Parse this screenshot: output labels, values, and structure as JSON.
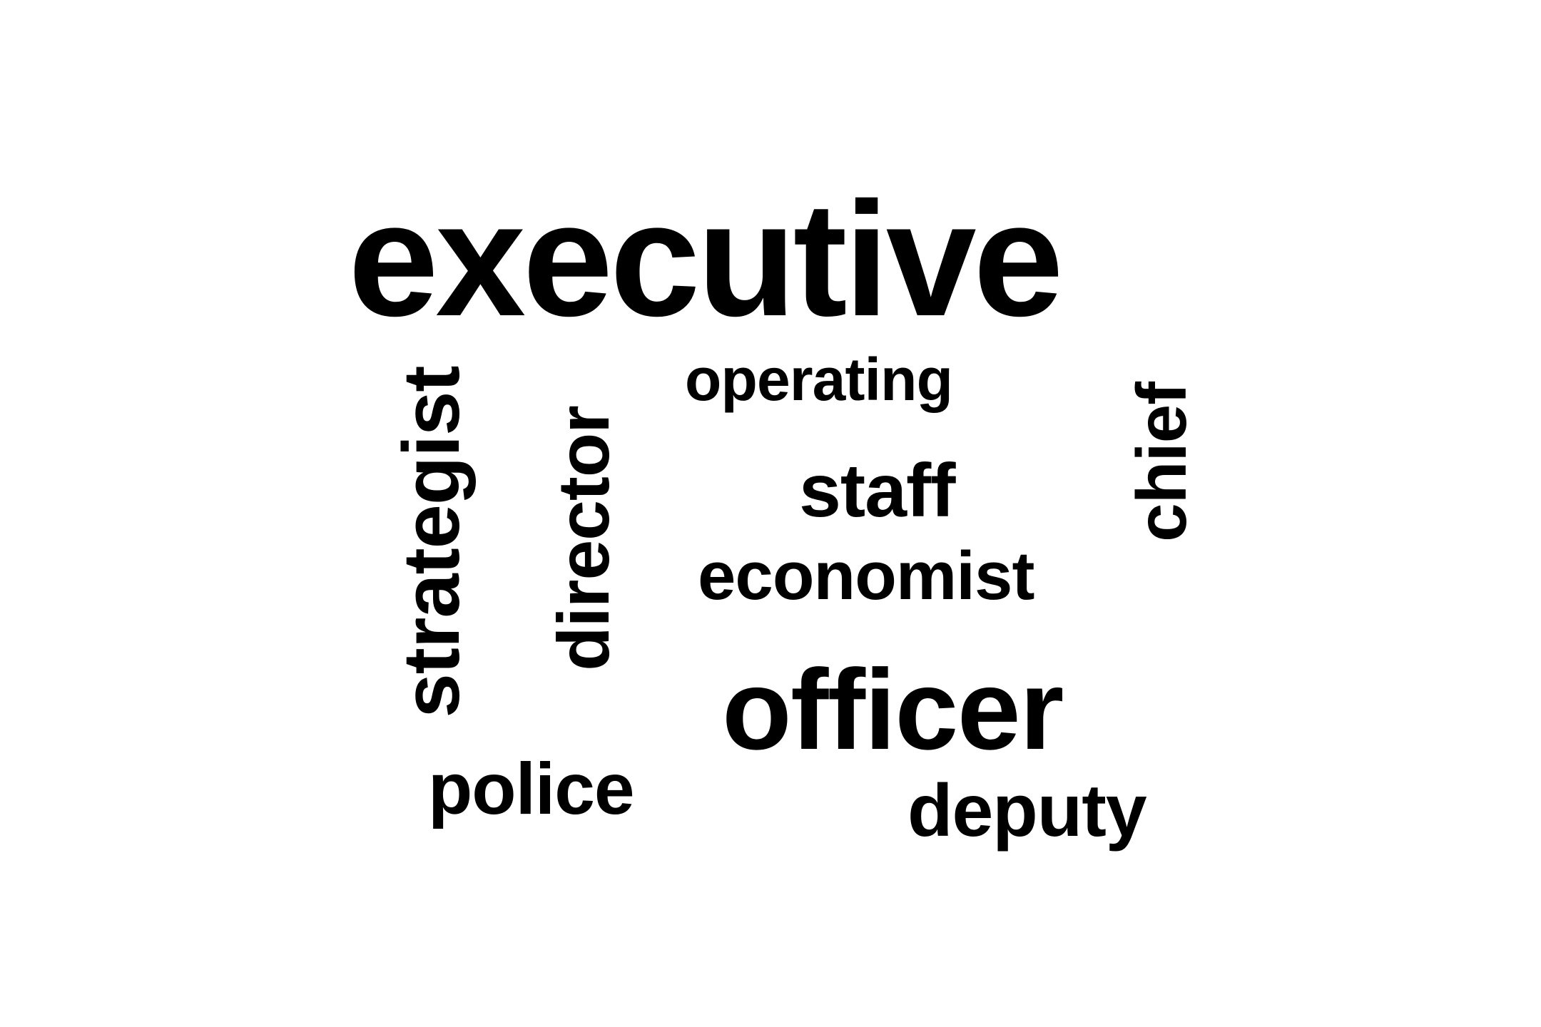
{
  "words": {
    "executive": "executive",
    "operating": "operating",
    "staff": "staff",
    "economist": "economist",
    "officer": "officer",
    "police": "police",
    "deputy": "deputy",
    "strategist": "strategist",
    "director": "director",
    "chief": "chief"
  },
  "colors": {
    "text": "#000000",
    "background": "#ffffff"
  }
}
